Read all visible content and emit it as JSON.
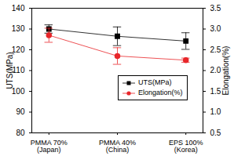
{
  "chart_data": {
    "type": "line",
    "categories": [
      "PMMA 70%\n(Japan)",
      "PMMA 40%\n(China)",
      "EPS 100%\n(Korea)"
    ],
    "y_label": "UTS(MPa)",
    "y2_label": "Elongation(%)",
    "ylim": [
      80,
      140
    ],
    "yticks": [
      80,
      90,
      100,
      110,
      120,
      130,
      140
    ],
    "y2lim": [
      0.5,
      3.5
    ],
    "y2ticks": [
      {
        "value": 0.5,
        "label": "0.5"
      },
      {
        "value": 1,
        "label": "1.0"
      },
      {
        "value": 1.5,
        "label": "1.5"
      },
      {
        "value": 2,
        "label": "2.0"
      },
      {
        "value": 2.5,
        "label": "2.5"
      },
      {
        "value": 3,
        "label": "3.0"
      },
      {
        "value": 3.5,
        "label": "3.5"
      }
    ],
    "series": [
      {
        "name": "UTS(MPa)",
        "color": "#000000",
        "marker": "square",
        "line_style": "solid",
        "values": [
          130,
          126.5,
          124.2
        ],
        "errors": [
          2,
          4.5,
          4
        ]
      },
      {
        "name": "Elongation(%)",
        "color": "#e8262a",
        "marker": "circle",
        "line_style": "solid",
        "axis": "y2",
        "values": [
          2.85,
          2.35,
          2.25
        ],
        "errors": [
          0.17,
          0.2,
          0.05
        ]
      }
    ],
    "legend": "right",
    "grid": false
  }
}
